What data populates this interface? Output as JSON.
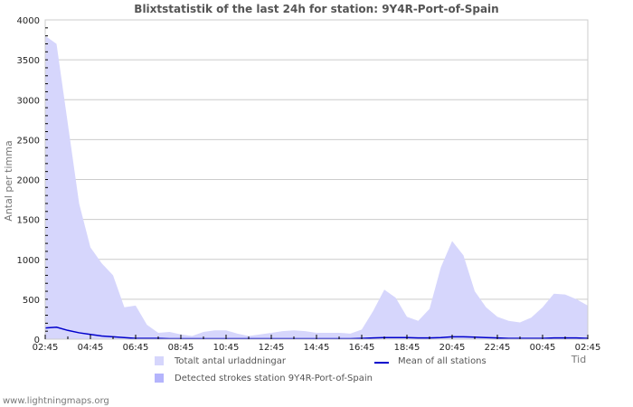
{
  "title": "Blixtstatistik of the last 24h for station: 9Y4R-Port-of-Spain",
  "footer": "www.lightningmaps.org",
  "legend": {
    "total": {
      "label": "Totalt antal urladdningar",
      "color": "#d6d6fc"
    },
    "detected": {
      "label": "Detected strokes station 9Y4R-Port-of-Spain",
      "color": "#b4b4fc"
    },
    "mean": {
      "label": "Mean of all stations",
      "color": "#0000cc"
    }
  },
  "chart_data": {
    "type": "area",
    "title": "Blixtstatistik of the last 24h for station: 9Y4R-Port-of-Spain",
    "xlabel": "Tid",
    "ylabel": "Antal per timma",
    "ylim": [
      0,
      4000
    ],
    "yticks": [
      0,
      500,
      1000,
      1500,
      2000,
      2500,
      3000,
      3500,
      4000
    ],
    "xticks": [
      "02:45",
      "04:45",
      "06:45",
      "08:45",
      "10:45",
      "12:45",
      "14:45",
      "16:45",
      "18:45",
      "20:45",
      "22:45",
      "00:45",
      "02:45"
    ],
    "grid": true,
    "legend_position": "bottom",
    "x": [
      "02:45",
      "03:15",
      "03:45",
      "04:15",
      "04:45",
      "05:15",
      "05:45",
      "06:15",
      "06:45",
      "07:15",
      "07:45",
      "08:15",
      "08:45",
      "09:15",
      "09:45",
      "10:15",
      "10:45",
      "11:15",
      "11:45",
      "12:15",
      "12:45",
      "13:15",
      "13:45",
      "14:15",
      "14:45",
      "15:15",
      "15:45",
      "16:15",
      "16:45",
      "17:15",
      "17:45",
      "18:15",
      "18:45",
      "19:15",
      "19:45",
      "20:15",
      "20:45",
      "21:15",
      "21:45",
      "22:15",
      "22:45",
      "23:15",
      "23:45",
      "00:15",
      "00:45",
      "01:15",
      "01:45",
      "02:15",
      "02:30"
    ],
    "series": [
      {
        "name": "Totalt antal urladdningar",
        "values": [
          3800,
          3700,
          2700,
          1700,
          1150,
          950,
          800,
          400,
          420,
          180,
          80,
          90,
          60,
          40,
          90,
          110,
          110,
          70,
          40,
          60,
          80,
          100,
          110,
          100,
          80,
          80,
          80,
          70,
          120,
          350,
          620,
          520,
          280,
          230,
          380,
          900,
          1230,
          1050,
          600,
          400,
          280,
          230,
          210,
          270,
          400,
          570,
          560,
          500,
          420
        ]
      },
      {
        "name": "Detected strokes station 9Y4R-Port-of-Spain",
        "values": [
          0,
          0,
          0,
          0,
          0,
          0,
          0,
          0,
          0,
          0,
          0,
          0,
          0,
          0,
          0,
          0,
          0,
          0,
          0,
          0,
          0,
          0,
          0,
          0,
          0,
          0,
          0,
          0,
          0,
          0,
          0,
          0,
          0,
          0,
          0,
          0,
          0,
          0,
          0,
          0,
          0,
          0,
          0,
          0,
          0,
          0,
          0,
          0,
          0
        ]
      },
      {
        "name": "Mean of all stations",
        "values": [
          140,
          150,
          110,
          80,
          60,
          40,
          30,
          20,
          10,
          10,
          10,
          5,
          5,
          5,
          5,
          5,
          5,
          5,
          5,
          5,
          5,
          5,
          5,
          5,
          5,
          5,
          5,
          5,
          10,
          15,
          20,
          20,
          20,
          15,
          15,
          20,
          30,
          30,
          25,
          20,
          15,
          10,
          10,
          10,
          10,
          15,
          15,
          15,
          10
        ]
      }
    ]
  }
}
